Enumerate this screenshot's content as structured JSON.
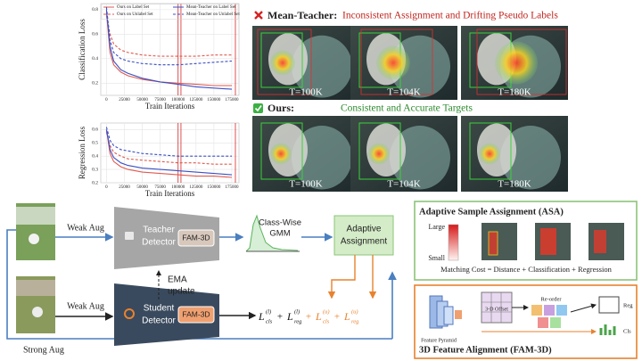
{
  "chart_data": [
    {
      "type": "line",
      "xlabel": "Train Iterations",
      "ylabel": "Classification Loss",
      "x": [
        0,
        5000,
        10000,
        20000,
        30000,
        50000,
        75000,
        100000,
        125000,
        150000,
        175000
      ],
      "xlim": [
        -8000,
        185000
      ],
      "xticks": [
        0,
        25000,
        50000,
        75000,
        100000,
        125000,
        150000,
        175000
      ],
      "ylim": [
        0.1,
        0.85
      ],
      "yticks": [
        0.2,
        0.4,
        0.6,
        0.8
      ],
      "grid": true,
      "legend": "top",
      "vlines": [
        100000,
        104000,
        180000
      ],
      "vline_color": "#d62728",
      "series": [
        {
          "name": "Ours on Label Set",
          "color": "#e05a4f",
          "dash": false,
          "values": [
            0.78,
            0.45,
            0.35,
            0.29,
            0.26,
            0.23,
            0.21,
            0.2,
            0.19,
            0.18,
            0.18
          ]
        },
        {
          "name": "Ours on Unlabel Set",
          "color": "#e05a4f",
          "dash": true,
          "values": [
            0.75,
            0.6,
            0.52,
            0.47,
            0.45,
            0.43,
            0.42,
            0.42,
            0.42,
            0.43,
            0.43
          ]
        },
        {
          "name": "Mean-Teacher on Label Set",
          "color": "#3a4fc4",
          "dash": false,
          "values": [
            0.8,
            0.5,
            0.38,
            0.31,
            0.28,
            0.24,
            0.21,
            0.19,
            0.17,
            0.16,
            0.15
          ]
        },
        {
          "name": "Mean-Teacher on Unlabel Set",
          "color": "#3a4fc4",
          "dash": true,
          "values": [
            0.82,
            0.55,
            0.45,
            0.4,
            0.38,
            0.36,
            0.35,
            0.35,
            0.36,
            0.37,
            0.38
          ]
        }
      ]
    },
    {
      "type": "line",
      "xlabel": "Train Iterations",
      "ylabel": "Regression Loss",
      "x": [
        0,
        5000,
        10000,
        20000,
        30000,
        50000,
        75000,
        100000,
        125000,
        150000,
        175000
      ],
      "xlim": [
        -8000,
        185000
      ],
      "xticks": [
        0,
        25000,
        50000,
        75000,
        100000,
        125000,
        150000,
        175000
      ],
      "ylim": [
        0.2,
        0.65
      ],
      "yticks": [
        0.2,
        0.3,
        0.4,
        0.5,
        0.6
      ],
      "grid": true,
      "legend": false,
      "vlines": [
        100000,
        104000,
        180000
      ],
      "vline_color": "#d62728",
      "series": [
        {
          "color": "#e05a4f",
          "dash": false,
          "values": [
            0.6,
            0.42,
            0.36,
            0.32,
            0.3,
            0.28,
            0.27,
            0.26,
            0.25,
            0.25,
            0.24
          ]
        },
        {
          "color": "#e05a4f",
          "dash": true,
          "values": [
            0.58,
            0.48,
            0.43,
            0.4,
            0.38,
            0.37,
            0.36,
            0.35,
            0.35,
            0.34,
            0.34
          ]
        },
        {
          "color": "#3a4fc4",
          "dash": false,
          "values": [
            0.6,
            0.45,
            0.39,
            0.35,
            0.33,
            0.31,
            0.3,
            0.29,
            0.28,
            0.27,
            0.26
          ]
        },
        {
          "color": "#3a4fc4",
          "dash": true,
          "values": [
            0.62,
            0.52,
            0.48,
            0.45,
            0.44,
            0.42,
            0.41,
            0.4,
            0.4,
            0.4,
            0.4
          ]
        }
      ]
    }
  ],
  "comparison": {
    "mean_teacher": {
      "label": "Mean-Teacher:",
      "desc": "Inconsistent Assignment and Drifting Pseudo Labels",
      "times": [
        "T=100K",
        "T=104K",
        "T=180K"
      ]
    },
    "ours": {
      "label": "Ours:",
      "desc": "Consistent and Accurate Targets",
      "times": [
        "T=100K",
        "T=104K",
        "T=180K"
      ]
    }
  },
  "pipeline": {
    "weak_aug_top": "Weak Aug",
    "weak_aug_bottom": "Weak Aug",
    "strong_aug": "Strong Aug",
    "teacher": [
      "Teacher",
      "Detector"
    ],
    "student": [
      "Student",
      "Detector"
    ],
    "fam_teacher": "FAM-3D",
    "fam_student": "FAM-3D",
    "gmm": [
      "Class-Wise",
      "GMM"
    ],
    "assignment": [
      "Adaptive",
      "Assignment"
    ],
    "ema": [
      "EMA",
      "update"
    ],
    "loss_terms": [
      {
        "sym": "L",
        "sub": "cls",
        "sup": "(l)",
        "color": "#111111"
      },
      {
        "sym": "L",
        "sub": "reg",
        "sup": "(l)",
        "color": "#111111"
      },
      {
        "sym": "L",
        "sub": "cls",
        "sup": "(u)",
        "color": "#e8822e"
      },
      {
        "sym": "L",
        "sub": "reg",
        "sup": "(u)",
        "color": "#e8822e"
      }
    ],
    "loss_ops": [
      "+",
      "+",
      "+"
    ]
  },
  "asa": {
    "title": "Adaptive Sample Assignment (ASA)",
    "large": "Large",
    "small": "Small",
    "cost": "Matching Cost = Distance  +  Classification  +  Regression"
  },
  "fam3d": {
    "title": "3D Feature Alignment (FAM-3D)",
    "pyramid": "Feature Pyramid",
    "offset": "3-D Offset",
    "reorder": "Re-order",
    "reg": "Reg",
    "cls": "Cls"
  }
}
